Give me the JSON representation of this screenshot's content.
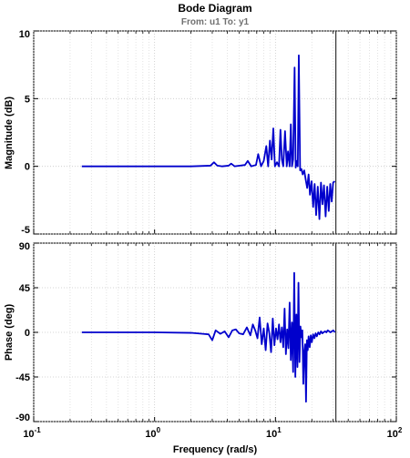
{
  "chart_data": {
    "type": "line",
    "title": "Bode Diagram",
    "subtitle": "From: u1  To: y1",
    "xlabel": "Frequency  (rad/s)",
    "xscale": "log",
    "xlim": [
      0.1,
      100
    ],
    "xticks": [
      {
        "value": 0.1,
        "base": "10",
        "exp": "-1"
      },
      {
        "value": 1,
        "base": "10",
        "exp": "0"
      },
      {
        "value": 10,
        "base": "10",
        "exp": "1"
      },
      {
        "value": 100,
        "base": "10",
        "exp": "2"
      }
    ],
    "vline": 31.6,
    "grid": true,
    "line_color": "#0000cc",
    "magnitude": {
      "ylabel": "Magnitude (dB)",
      "ylim": [
        -5,
        10
      ],
      "yticks": [
        "10",
        "5",
        "0",
        "-5"
      ],
      "x": [
        0.25,
        1.0,
        2.0,
        2.9,
        3.1,
        3.3,
        3.6,
        4.1,
        4.3,
        4.6,
        5.6,
        5.9,
        6.3,
        6.9,
        7.2,
        7.6,
        8.0,
        8.4,
        8.7,
        9.0,
        9.3,
        9.6,
        9.9,
        10.3,
        10.7,
        11.0,
        11.3,
        11.6,
        12.0,
        12.4,
        12.7,
        13.1,
        13.4,
        13.7,
        14.0,
        14.4,
        14.7,
        15.0,
        15.3,
        15.6,
        16.0,
        16.4,
        16.8,
        17.3,
        17.8,
        18.3,
        18.8,
        19.3,
        19.9,
        20.5,
        21.1,
        21.7,
        22.4,
        23.1,
        23.8,
        24.5,
        25.2,
        26.0,
        26.8,
        27.6,
        28.4,
        29.2,
        30.0,
        31.0
      ],
      "y": [
        0,
        0,
        0,
        0.05,
        0.3,
        0.05,
        0,
        0.05,
        0.2,
        0,
        0.1,
        0.4,
        0,
        0.1,
        0.9,
        0,
        0.4,
        1.5,
        0,
        1.9,
        0.5,
        2.8,
        0,
        0.3,
        0,
        2.7,
        0.5,
        0,
        2.6,
        0,
        1.1,
        0,
        3.1,
        0,
        0.5,
        7.3,
        -0.1,
        0.4,
        0,
        8.2,
        -0.3,
        -0.2,
        -0.6,
        -0.3,
        -1.0,
        -1.6,
        -0.6,
        -2.1,
        -1.1,
        -3.0,
        -1.3,
        -3.6,
        -1.5,
        -3.9,
        -1.2,
        -2.8,
        -1.4,
        -3.7,
        -1.5,
        -3.3,
        -1.3,
        -2.6,
        -1.2,
        -1.1
      ]
    },
    "phase": {
      "ylabel": "Phase (deg)",
      "ylim": [
        -90,
        90
      ],
      "yticks": [
        "90",
        "45",
        "0",
        "-45",
        "-90"
      ],
      "x": [
        0.25,
        1.0,
        2.0,
        2.5,
        2.8,
        3.0,
        3.2,
        3.5,
        3.8,
        4.1,
        4.4,
        4.7,
        5.0,
        5.4,
        5.8,
        6.2,
        6.5,
        6.8,
        7.1,
        7.4,
        7.7,
        8.0,
        8.3,
        8.6,
        8.9,
        9.2,
        9.5,
        9.8,
        10.1,
        10.4,
        10.7,
        11.0,
        11.3,
        11.6,
        11.9,
        12.2,
        12.5,
        12.8,
        13.1,
        13.4,
        13.7,
        14.0,
        14.3,
        14.6,
        14.9,
        15.2,
        15.5,
        15.8,
        16.1,
        16.4,
        16.7,
        17.0,
        17.3,
        17.6,
        17.9,
        18.2,
        18.5,
        18.8,
        19.2,
        19.6,
        20.0,
        20.5,
        21.0,
        21.5,
        22.0,
        22.6,
        23.2,
        23.8,
        24.4,
        25.0,
        25.7,
        26.4,
        27.1,
        27.8,
        28.5,
        29.3,
        30.1,
        31.0
      ],
      "y": [
        0,
        0,
        -0.5,
        -1.5,
        -2,
        -8,
        2,
        -1.5,
        1,
        -5,
        2,
        3,
        -1,
        -2,
        5,
        -3,
        8,
        2,
        -6,
        15,
        -12,
        4,
        -18,
        9,
        -1,
        -20,
        14,
        -13,
        4,
        -7,
        8,
        -10,
        5,
        -15,
        24,
        -22,
        3,
        -16,
        30,
        -28,
        10,
        -40,
        60,
        -45,
        18,
        -35,
        50,
        -30,
        6,
        -5,
        2,
        -52,
        -20,
        -12,
        -70,
        -8,
        -18,
        -4,
        -15,
        -3,
        -10,
        -2,
        -6,
        -1,
        -4,
        0,
        -2,
        1,
        -1,
        0,
        1,
        0,
        2,
        1,
        0,
        1,
        2,
        0
      ]
    }
  }
}
